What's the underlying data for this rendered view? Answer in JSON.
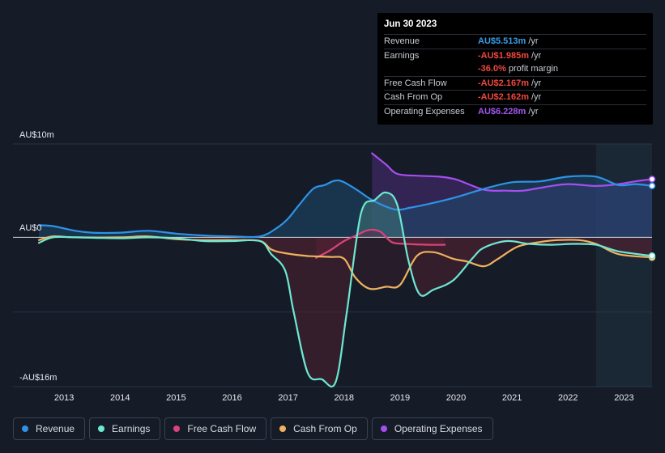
{
  "tooltip": {
    "date": "Jun 30 2023",
    "rows": [
      {
        "label": "Revenue",
        "value": "AU$5.513m",
        "unit": "/yr",
        "color": "#3a9de8"
      },
      {
        "label": "Earnings",
        "value": "-AU$1.985m",
        "unit": "/yr",
        "color": "#f0473f"
      },
      {
        "label": "",
        "value": "-36.0%",
        "unit": "profit margin",
        "color": "#f0473f"
      },
      {
        "label": "Free Cash Flow",
        "value": "-AU$2.167m",
        "unit": "/yr",
        "color": "#f0473f"
      },
      {
        "label": "Cash From Op",
        "value": "-AU$2.162m",
        "unit": "/yr",
        "color": "#f0473f"
      },
      {
        "label": "Operating Expenses",
        "value": "AU$6.228m",
        "unit": "/yr",
        "color": "#a356f0"
      }
    ]
  },
  "legend": [
    {
      "label": "Revenue",
      "color": "#2e93e6"
    },
    {
      "label": "Earnings",
      "color": "#6de8d2"
    },
    {
      "label": "Free Cash Flow",
      "color": "#d8437a"
    },
    {
      "label": "Cash From Op",
      "color": "#f0b25e"
    },
    {
      "label": "Operating Expenses",
      "color": "#a64ef0"
    }
  ],
  "chart_data": {
    "type": "line",
    "title": "",
    "y_tick_labels": [
      "AU$10m",
      "AU$0",
      "-AU$16m"
    ],
    "ylim": [
      -16,
      10
    ],
    "x_tick_labels": [
      "2013",
      "2014",
      "2015",
      "2016",
      "2017",
      "2018",
      "2019",
      "2020",
      "2021",
      "2022",
      "2023"
    ],
    "xlim": [
      2012.55,
      2023.5
    ],
    "highlight_start": 2022.5,
    "series": [
      {
        "name": "Revenue",
        "color": "#2e93e6",
        "points": [
          [
            2012.55,
            1.3
          ],
          [
            2012.8,
            1.2
          ],
          [
            2013.2,
            0.7
          ],
          [
            2013.5,
            0.5
          ],
          [
            2014.0,
            0.5
          ],
          [
            2014.5,
            0.7
          ],
          [
            2015.0,
            0.4
          ],
          [
            2015.5,
            0.2
          ],
          [
            2016.0,
            0.1
          ],
          [
            2016.5,
            0.1
          ],
          [
            2016.8,
            1.0
          ],
          [
            2017.0,
            2.0
          ],
          [
            2017.2,
            3.5
          ],
          [
            2017.45,
            5.2
          ],
          [
            2017.65,
            5.6
          ],
          [
            2017.9,
            6.1
          ],
          [
            2018.2,
            5.2
          ],
          [
            2018.5,
            4.0
          ],
          [
            2018.9,
            3.0
          ],
          [
            2019.2,
            3.2
          ],
          [
            2019.6,
            3.7
          ],
          [
            2020.0,
            4.3
          ],
          [
            2020.5,
            5.2
          ],
          [
            2021.0,
            5.9
          ],
          [
            2021.5,
            6.0
          ],
          [
            2022.0,
            6.5
          ],
          [
            2022.5,
            6.5
          ],
          [
            2022.9,
            5.6
          ],
          [
            2023.2,
            5.7
          ],
          [
            2023.5,
            5.513
          ]
        ]
      },
      {
        "name": "Earnings",
        "color": "#6de8d2",
        "points": [
          [
            2012.55,
            -0.6
          ],
          [
            2012.8,
            0.0
          ],
          [
            2013.2,
            0.0
          ],
          [
            2014.0,
            -0.1
          ],
          [
            2014.5,
            0.0
          ],
          [
            2015.0,
            -0.1
          ],
          [
            2015.5,
            -0.4
          ],
          [
            2016.0,
            -0.4
          ],
          [
            2016.5,
            -0.4
          ],
          [
            2016.7,
            -1.8
          ],
          [
            2016.95,
            -3.6
          ],
          [
            2017.1,
            -8.0
          ],
          [
            2017.35,
            -14.5
          ],
          [
            2017.6,
            -15.2
          ],
          [
            2017.85,
            -15.5
          ],
          [
            2018.05,
            -8.0
          ],
          [
            2018.3,
            2.5
          ],
          [
            2018.55,
            4.0
          ],
          [
            2018.75,
            4.8
          ],
          [
            2018.95,
            3.5
          ],
          [
            2019.15,
            -2.5
          ],
          [
            2019.35,
            -6.1
          ],
          [
            2019.6,
            -5.6
          ],
          [
            2019.95,
            -4.6
          ],
          [
            2020.3,
            -2.2
          ],
          [
            2020.5,
            -1.1
          ],
          [
            2020.9,
            -0.4
          ],
          [
            2021.3,
            -0.7
          ],
          [
            2021.7,
            -0.8
          ],
          [
            2022.1,
            -0.7
          ],
          [
            2022.5,
            -0.8
          ],
          [
            2022.9,
            -1.5
          ],
          [
            2023.5,
            -1.985
          ]
        ]
      },
      {
        "name": "Free Cash Flow",
        "color": "#d8437a",
        "points": [
          [
            2017.5,
            -2.2
          ],
          [
            2017.75,
            -1.4
          ],
          [
            2018.0,
            -0.4
          ],
          [
            2018.25,
            0.3
          ],
          [
            2018.45,
            0.8
          ],
          [
            2018.65,
            0.6
          ],
          [
            2018.85,
            -0.5
          ],
          [
            2019.1,
            -0.7
          ],
          [
            2019.5,
            -0.8
          ],
          [
            2019.8,
            -0.8
          ]
        ]
      },
      {
        "name": "Cash From Op",
        "color": "#f0b25e",
        "points": [
          [
            2012.55,
            -0.3
          ],
          [
            2012.8,
            0.1
          ],
          [
            2013.2,
            0.0
          ],
          [
            2014.0,
            0.0
          ],
          [
            2014.5,
            0.1
          ],
          [
            2015.0,
            -0.2
          ],
          [
            2015.5,
            -0.3
          ],
          [
            2016.0,
            -0.3
          ],
          [
            2016.5,
            -0.4
          ],
          [
            2016.7,
            -1.3
          ],
          [
            2016.95,
            -1.7
          ],
          [
            2017.35,
            -2.0
          ],
          [
            2017.75,
            -2.1
          ],
          [
            2018.0,
            -2.3
          ],
          [
            2018.2,
            -4.3
          ],
          [
            2018.45,
            -5.5
          ],
          [
            2018.75,
            -5.3
          ],
          [
            2019.0,
            -5.1
          ],
          [
            2019.3,
            -2.0
          ],
          [
            2019.6,
            -1.6
          ],
          [
            2019.95,
            -2.3
          ],
          [
            2020.2,
            -2.6
          ],
          [
            2020.5,
            -3.1
          ],
          [
            2020.75,
            -2.3
          ],
          [
            2021.1,
            -1.0
          ],
          [
            2021.5,
            -0.5
          ],
          [
            2021.8,
            -0.3
          ],
          [
            2022.2,
            -0.3
          ],
          [
            2022.5,
            -0.7
          ],
          [
            2022.9,
            -1.8
          ],
          [
            2023.5,
            -2.162
          ]
        ]
      },
      {
        "name": "Operating Expenses",
        "color": "#a64ef0",
        "points": [
          [
            2018.5,
            9.0
          ],
          [
            2018.75,
            7.8
          ],
          [
            2018.95,
            6.8
          ],
          [
            2019.3,
            6.6
          ],
          [
            2019.7,
            6.5
          ],
          [
            2020.0,
            6.2
          ],
          [
            2020.5,
            5.1
          ],
          [
            2020.9,
            5.0
          ],
          [
            2021.2,
            5.0
          ],
          [
            2021.6,
            5.4
          ],
          [
            2022.0,
            5.7
          ],
          [
            2022.5,
            5.5
          ],
          [
            2022.9,
            5.7
          ],
          [
            2023.2,
            6.0
          ],
          [
            2023.5,
            6.228
          ]
        ]
      }
    ]
  }
}
